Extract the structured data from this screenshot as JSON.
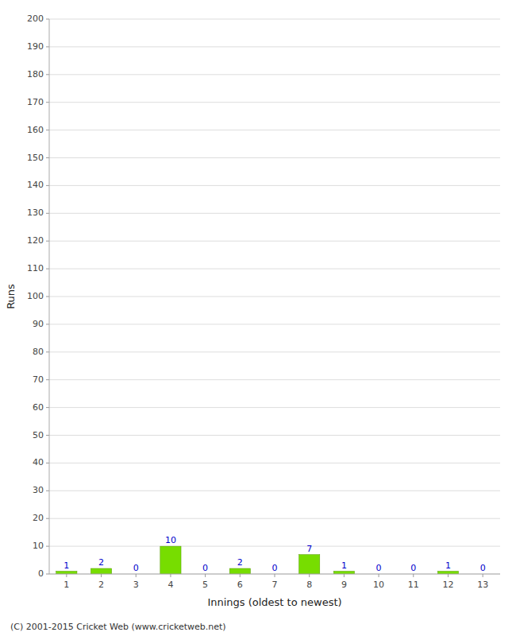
{
  "chart_data": {
    "type": "bar",
    "xlabel": "Innings (oldest to newest)",
    "ylabel": "Runs",
    "categories": [
      1,
      2,
      3,
      4,
      5,
      6,
      7,
      8,
      9,
      10,
      11,
      12,
      13
    ],
    "values": [
      1,
      2,
      0,
      10,
      0,
      2,
      0,
      7,
      1,
      0,
      0,
      1,
      0
    ],
    "color": "#77dd00",
    "ylim": [
      0,
      200
    ],
    "yticks": [
      0,
      10,
      20,
      30,
      40,
      50,
      60,
      70,
      80,
      90,
      100,
      110,
      120,
      130,
      140,
      150,
      160,
      170,
      180,
      190,
      200
    ],
    "grid": true,
    "data_labels": true,
    "footer": "(C) 2001-2015 Cricket Web (www.cricketweb.net)"
  }
}
